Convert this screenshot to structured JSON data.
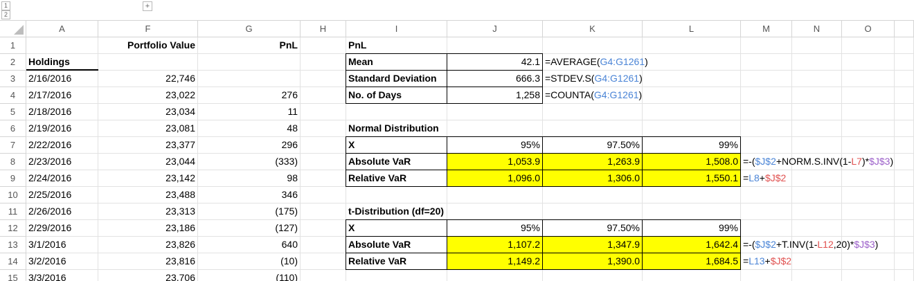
{
  "outline": {
    "levels": [
      "1",
      "2"
    ],
    "expand": "+"
  },
  "columns": [
    "A",
    "F",
    "G",
    "H",
    "I",
    "J",
    "K",
    "L",
    "M",
    "N",
    "O"
  ],
  "rows": [
    {
      "number": "1",
      "cells": {
        "F": "Portfolio Value",
        "G": "PnL",
        "I": "PnL"
      }
    },
    {
      "number": "2",
      "cells": {
        "A": "Holdings",
        "I": "Mean",
        "J": "42.1",
        "K": [
          {
            "text": "=AVERAGE("
          },
          {
            "text": "G4:G1261",
            "color": "#4a84d6"
          },
          {
            "text": ")"
          }
        ]
      }
    },
    {
      "number": "3",
      "cells": {
        "A": "2/16/2016",
        "F": "22,746",
        "I": "Standard Deviation",
        "J": "666.3",
        "K": [
          {
            "text": "=STDEV.S("
          },
          {
            "text": "G4:G1261",
            "color": "#4a84d6"
          },
          {
            "text": ")"
          }
        ]
      }
    },
    {
      "number": "4",
      "cells": {
        "A": "2/17/2016",
        "F": "23,022",
        "G": "276",
        "I": "No. of Days",
        "J": "1,258",
        "K": [
          {
            "text": "=COUNTA("
          },
          {
            "text": "G4:G1261",
            "color": "#4a84d6"
          },
          {
            "text": ")"
          }
        ]
      }
    },
    {
      "number": "5",
      "cells": {
        "A": "2/18/2016",
        "F": "23,034",
        "G": "11"
      }
    },
    {
      "number": "6",
      "cells": {
        "A": "2/19/2016",
        "F": "23,081",
        "G": "48",
        "I": "Normal Distribution"
      }
    },
    {
      "number": "7",
      "cells": {
        "A": "2/22/2016",
        "F": "23,377",
        "G": "296",
        "I": "X",
        "J": "95%",
        "K": "97.50%",
        "L": "99%"
      }
    },
    {
      "number": "8",
      "cells": {
        "A": "2/23/2016",
        "F": "23,044",
        "G": "(333)",
        "I": "Absolute VaR",
        "J": "1,053.9",
        "K": "1,263.9",
        "L": "1,508.0",
        "M": [
          {
            "text": "=-("
          },
          {
            "text": "$J$2",
            "color": "#4a84d6"
          },
          {
            "text": "+NORM.S.INV(1-"
          },
          {
            "text": "L7",
            "color": "#e0504f"
          },
          {
            "text": ")*"
          },
          {
            "text": "$J$3",
            "color": "#9b5fc9"
          },
          {
            "text": ")"
          }
        ]
      }
    },
    {
      "number": "9",
      "cells": {
        "A": "2/24/2016",
        "F": "23,142",
        "G": "98",
        "I": "Relative VaR",
        "J": "1,096.0",
        "K": "1,306.0",
        "L": "1,550.1",
        "M": [
          {
            "text": "="
          },
          {
            "text": "L8",
            "color": "#4a84d6"
          },
          {
            "text": "+"
          },
          {
            "text": "$J$2",
            "color": "#e0504f"
          }
        ]
      }
    },
    {
      "number": "10",
      "cells": {
        "A": "2/25/2016",
        "F": "23,488",
        "G": "346"
      }
    },
    {
      "number": "11",
      "cells": {
        "A": "2/26/2016",
        "F": "23,313",
        "G": "(175)",
        "I": "t-Distribution (df=20)"
      }
    },
    {
      "number": "12",
      "cells": {
        "A": "2/29/2016",
        "F": "23,186",
        "G": "(127)",
        "I": "X",
        "J": "95%",
        "K": "97.50%",
        "L": "99%"
      }
    },
    {
      "number": "13",
      "cells": {
        "A": "3/1/2016",
        "F": "23,826",
        "G": "640",
        "I": "Absolute VaR",
        "J": "1,107.2",
        "K": "1,347.9",
        "L": "1,642.4",
        "M": [
          {
            "text": "=-("
          },
          {
            "text": "$J$2",
            "color": "#4a84d6"
          },
          {
            "text": "+T.INV(1-"
          },
          {
            "text": "L12",
            "color": "#e0504f"
          },
          {
            "text": ",20)*"
          },
          {
            "text": "$J$3",
            "color": "#9b5fc9"
          },
          {
            "text": ")"
          }
        ]
      }
    },
    {
      "number": "14",
      "cells": {
        "A": "3/2/2016",
        "F": "23,816",
        "G": "(10)",
        "I": "Relative VaR",
        "J": "1,149.2",
        "K": "1,390.0",
        "L": "1,684.5",
        "M": [
          {
            "text": "="
          },
          {
            "text": "L13",
            "color": "#4a84d6"
          },
          {
            "text": "+"
          },
          {
            "text": "$J$2",
            "color": "#e0504f"
          }
        ]
      }
    },
    {
      "number": "15",
      "cells": {
        "A": "3/3/2016",
        "F": "23,706",
        "G": "(110)"
      }
    }
  ]
}
